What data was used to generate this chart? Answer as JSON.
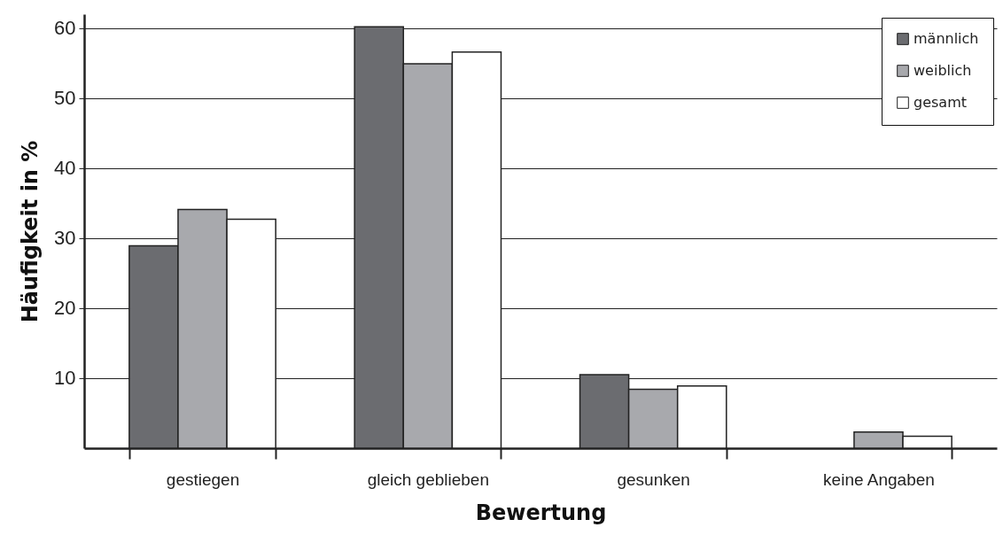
{
  "chart_data": {
    "type": "bar",
    "xlabel": "Bewertung",
    "ylabel": "Häufigkeit in %",
    "categories": [
      "gestiegen",
      "gleich geblieben",
      "gesunken",
      "keine Angaben"
    ],
    "series": [
      {
        "name": "männlich",
        "color": "#6b6c70",
        "values": [
          28.9,
          60.2,
          10.5,
          null
        ]
      },
      {
        "name": "weiblich",
        "color": "#a8a9ad",
        "values": [
          34.1,
          54.9,
          8.4,
          2.3
        ]
      },
      {
        "name": "gesamt",
        "color": "#ffffff",
        "values": [
          32.7,
          56.6,
          8.9,
          1.7
        ]
      }
    ],
    "ylim": [
      0,
      62
    ],
    "yticks": [
      10,
      20,
      30,
      40,
      50,
      60
    ],
    "grid": "y",
    "legend": "top right"
  }
}
